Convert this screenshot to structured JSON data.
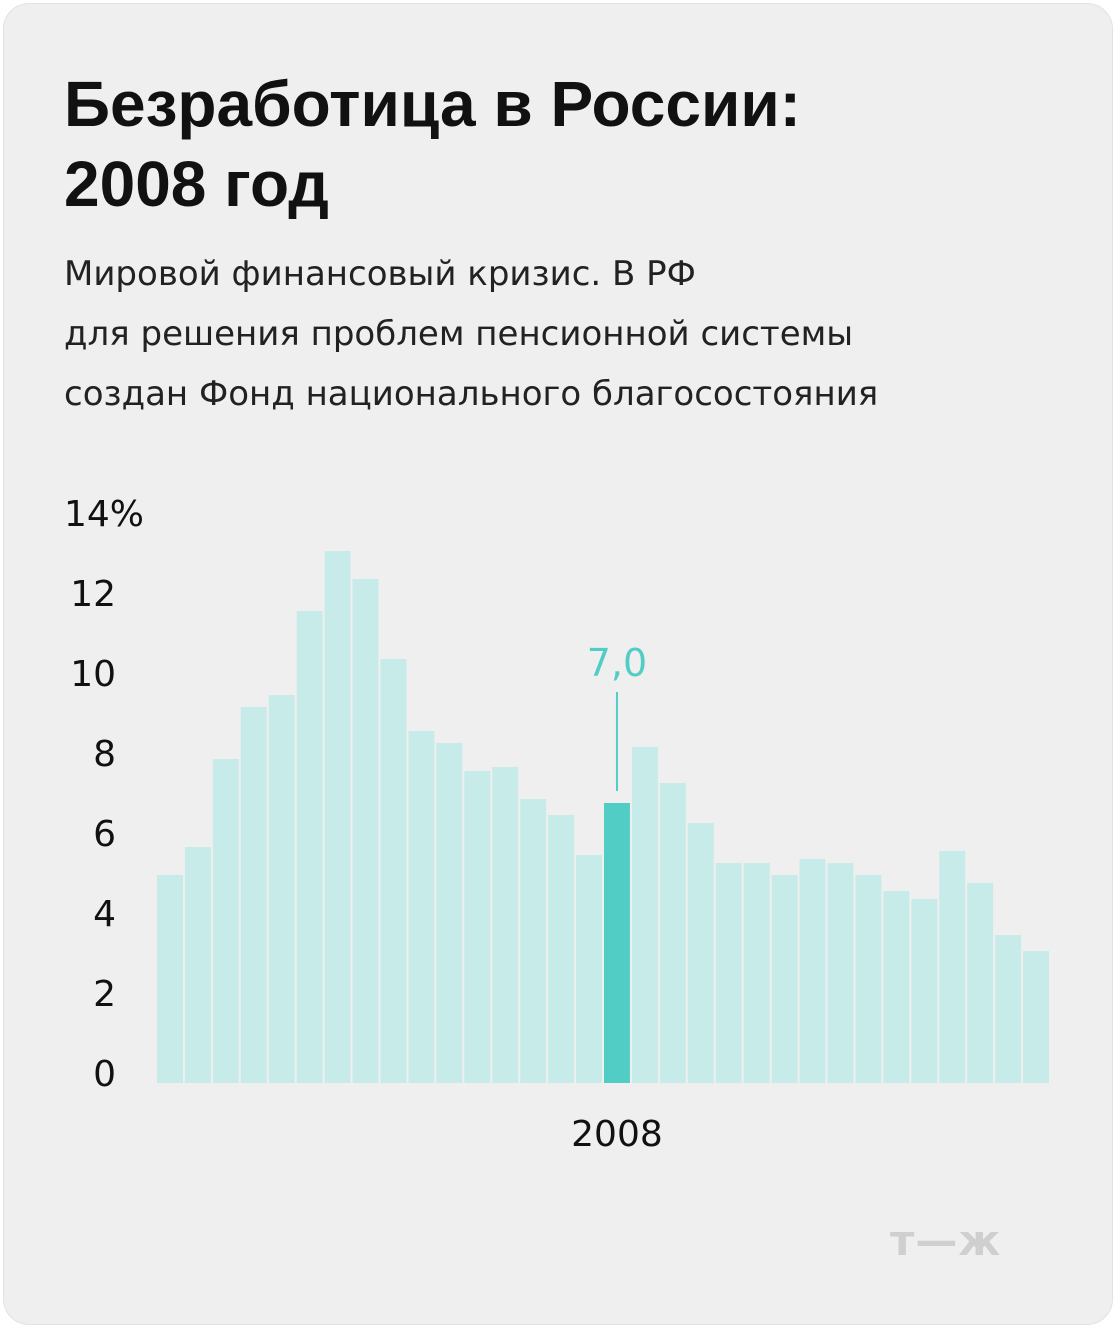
{
  "title_lines": [
    "Безработица в России:",
    "2008 год"
  ],
  "subtitle_lines": [
    "Мировой финансовый кризис. В РФ",
    "для решения проблем пенсионной системы",
    "создан Фонд национального благосостояния"
  ],
  "logo": "т—ж",
  "colors": {
    "bar": "#c7ebe8",
    "highlight": "#52cdc5",
    "background": "#efefef"
  },
  "chart_data": {
    "type": "bar",
    "title": "Безработица в России: 2008 год",
    "ylim": [
      0,
      14
    ],
    "y_ticks": [
      "14%",
      "12",
      "10",
      "8",
      "6",
      "4",
      "2",
      "0"
    ],
    "y_tick_values": [
      14,
      12,
      10,
      8,
      6,
      4,
      2,
      0
    ],
    "x_tick_label": "2008",
    "values": [
      5.2,
      5.9,
      8.1,
      9.4,
      9.7,
      11.8,
      13.3,
      12.6,
      10.6,
      8.8,
      8.5,
      7.8,
      7.9,
      7.1,
      6.7,
      5.7,
      7.0,
      8.4,
      7.5,
      6.5,
      5.5,
      5.5,
      5.2,
      5.6,
      5.5,
      5.2,
      4.8,
      4.6,
      5.8,
      5.0,
      3.7,
      3.3
    ],
    "highlight_index": 16,
    "highlight_label": "7,0"
  }
}
